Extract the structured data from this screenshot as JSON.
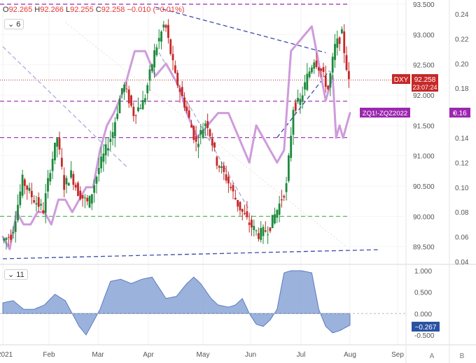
{
  "header": {
    "ohlc": [
      {
        "key": "O",
        "value": "92.265"
      },
      {
        "key": "H",
        "value": "92.266"
      },
      {
        "key": "L",
        "value": "92.255"
      },
      {
        "key": "C",
        "value": "92.258"
      }
    ],
    "change": "−0.010 (−0.01%)"
  },
  "legend_main": {
    "chevron": "⌄",
    "count": "6"
  },
  "legend_osc": {
    "chevron": "⌄",
    "count": "11"
  },
  "price_scale_labels": [
    "93.500",
    "93.000",
    "92.500",
    "92.000",
    "91.500",
    "91.000",
    "90.500",
    "90.000",
    "89.500"
  ],
  "spread_scale_labels": [
    "0.24",
    "0.22",
    "0.20",
    "0.18",
    "0.16",
    "0.14",
    "0.12",
    "0.10",
    "0.08",
    "0.06",
    "0.04"
  ],
  "osc_scale_labels": [
    "1.000",
    "0.500",
    "0.000",
    "-0.500"
  ],
  "time_labels": [
    "2021",
    "Feb",
    "Mar",
    "Apr",
    "May",
    "Jun",
    "Jul",
    "Aug",
    "Sep"
  ],
  "corner_labels": [
    "A",
    "B"
  ],
  "tags": {
    "dxy_label": "DXY",
    "dxy_price": "92.258",
    "dxy_countdown": "23:07:24",
    "spread_label": "ZQ1!-ZQZ2022",
    "spread_value": "0.16",
    "osc_value": "−0.267"
  },
  "chart_data": {
    "type": "candlestick",
    "symbol": "DXY",
    "time_labels": [
      "2021",
      "Feb",
      "Mar",
      "Apr",
      "May",
      "Jun",
      "Jul",
      "Aug",
      "Sep"
    ],
    "y_price_range": [
      89.3,
      93.5
    ],
    "y_spread_range": [
      0.04,
      0.24
    ],
    "y_osc_range": [
      -0.55,
      1.0
    ],
    "price_path": [
      [
        0,
        89.6
      ],
      [
        3,
        89.7
      ],
      [
        6,
        90.6
      ],
      [
        9,
        90.3
      ],
      [
        12,
        90.1
      ],
      [
        14,
        90.8
      ],
      [
        16,
        91.3
      ],
      [
        18,
        90.5
      ],
      [
        20,
        90.7
      ],
      [
        22,
        90.4
      ],
      [
        25,
        90.2
      ],
      [
        28,
        90.8
      ],
      [
        30,
        91.1
      ],
      [
        32,
        91.4
      ],
      [
        35,
        92.2
      ],
      [
        38,
        91.7
      ],
      [
        41,
        91.9
      ],
      [
        44,
        92.7
      ],
      [
        47,
        93.2
      ],
      [
        48,
        92.9
      ],
      [
        50,
        92.3
      ],
      [
        53,
        91.8
      ],
      [
        56,
        91.2
      ],
      [
        59,
        91.6
      ],
      [
        62,
        90.9
      ],
      [
        65,
        90.6
      ],
      [
        68,
        90.2
      ],
      [
        71,
        89.9
      ],
      [
        74,
        89.7
      ],
      [
        77,
        89.8
      ],
      [
        80,
        90.2
      ],
      [
        82,
        90.5
      ],
      [
        84,
        91.8
      ],
      [
        86,
        91.9
      ],
      [
        88,
        92.3
      ],
      [
        90,
        92.6
      ],
      [
        92,
        92.4
      ],
      [
        94,
        92.1
      ],
      [
        96,
        92.8
      ],
      [
        98,
        93.0
      ],
      [
        100,
        92.2
      ]
    ],
    "spread_path": [
      [
        0,
        0.06
      ],
      [
        2,
        0.05
      ],
      [
        4,
        0.08
      ],
      [
        6,
        0.07
      ],
      [
        8,
        0.07
      ],
      [
        10,
        0.08
      ],
      [
        12,
        0.08
      ],
      [
        14,
        0.07
      ],
      [
        16,
        0.09
      ],
      [
        18,
        0.09
      ],
      [
        20,
        0.08
      ],
      [
        22,
        0.09
      ],
      [
        24,
        0.1
      ],
      [
        26,
        0.1
      ],
      [
        28,
        0.13
      ],
      [
        30,
        0.15
      ],
      [
        32,
        0.16
      ],
      [
        35,
        0.18
      ],
      [
        38,
        0.21
      ],
      [
        41,
        0.21
      ],
      [
        44,
        0.19
      ],
      [
        47,
        0.2
      ],
      [
        49,
        0.19
      ],
      [
        51,
        0.18
      ],
      [
        53,
        0.16
      ],
      [
        56,
        0.14
      ],
      [
        59,
        0.15
      ],
      [
        62,
        0.16
      ],
      [
        65,
        0.16
      ],
      [
        68,
        0.14
      ],
      [
        71,
        0.12
      ],
      [
        73,
        0.15
      ],
      [
        75,
        0.14
      ],
      [
        77,
        0.13
      ],
      [
        79,
        0.12
      ],
      [
        81,
        0.13
      ],
      [
        83,
        0.21
      ],
      [
        86,
        0.22
      ],
      [
        89,
        0.23
      ],
      [
        91,
        0.2
      ],
      [
        93,
        0.17
      ],
      [
        95,
        0.19
      ],
      [
        96,
        0.14
      ],
      [
        97,
        0.15
      ],
      [
        98,
        0.14
      ],
      [
        100,
        0.16
      ]
    ],
    "correlation_path": [
      [
        0,
        0.25
      ],
      [
        3,
        0.3
      ],
      [
        6,
        0.1
      ],
      [
        9,
        0.1
      ],
      [
        12,
        0.2
      ],
      [
        15,
        0.45
      ],
      [
        18,
        0.3
      ],
      [
        20,
        0.0
      ],
      [
        22,
        -0.3
      ],
      [
        24,
        -0.5
      ],
      [
        26,
        -0.2
      ],
      [
        28,
        0.1
      ],
      [
        31,
        0.75
      ],
      [
        34,
        0.8
      ],
      [
        37,
        0.7
      ],
      [
        40,
        0.8
      ],
      [
        43,
        0.85
      ],
      [
        45,
        0.6
      ],
      [
        47,
        0.35
      ],
      [
        50,
        0.4
      ],
      [
        53,
        0.7
      ],
      [
        55,
        0.85
      ],
      [
        57,
        0.7
      ],
      [
        60,
        0.35
      ],
      [
        62,
        0.2
      ],
      [
        65,
        0.15
      ],
      [
        67,
        0.2
      ],
      [
        69,
        0.35
      ],
      [
        71,
        0.0
      ],
      [
        73,
        -0.25
      ],
      [
        75,
        -0.3
      ],
      [
        77,
        -0.15
      ],
      [
        79,
        0.1
      ],
      [
        81,
        0.95
      ],
      [
        83,
        1.0
      ],
      [
        86,
        1.0
      ],
      [
        89,
        0.95
      ],
      [
        91,
        0.1
      ],
      [
        93,
        -0.3
      ],
      [
        95,
        -0.45
      ],
      [
        97,
        -0.4
      ],
      [
        100,
        -0.27
      ]
    ],
    "levels": {
      "magenta_dashed": [
        91.9,
        91.3,
        93.5
      ],
      "green_dashed": [
        90.0
      ],
      "red_dotted": [
        92.25
      ]
    },
    "last": {
      "dxy": 92.258,
      "spread": 0.16,
      "correlation": -0.267
    }
  },
  "colors": {
    "up": "#26a69a",
    "down": "#ef5350",
    "spread": "#cf9bdc",
    "oscillator": "#8aa4d6",
    "magenta": "#9c27b0",
    "green": "#4caf50",
    "blue": "#3f51b5",
    "red": "#c62828"
  }
}
